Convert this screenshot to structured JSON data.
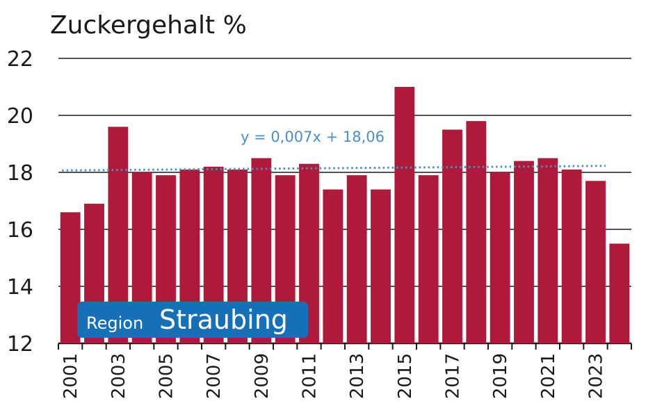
{
  "chart_data": {
    "type": "bar",
    "title": "Zuckergehalt %",
    "xlabel": "",
    "ylabel": "",
    "categories": [
      "2001",
      "2002",
      "2003",
      "2004",
      "2005",
      "2006",
      "2007",
      "2008",
      "2009",
      "2010",
      "2011",
      "2012",
      "2013",
      "2014",
      "2015",
      "2016",
      "2017",
      "2018",
      "2019",
      "2020",
      "2021",
      "2022",
      "2023",
      "2024"
    ],
    "values": [
      16.6,
      16.9,
      19.6,
      18.0,
      17.9,
      18.1,
      18.2,
      18.1,
      18.5,
      17.9,
      18.3,
      17.4,
      17.9,
      17.4,
      21.0,
      17.9,
      19.5,
      19.8,
      18.0,
      18.4,
      18.5,
      18.1,
      17.7,
      15.5
    ],
    "ylim": [
      12,
      22
    ],
    "yticks": [
      "12",
      "14",
      "16",
      "18",
      "20",
      "22"
    ],
    "xtick_labels": [
      "2001",
      "2003",
      "2005",
      "2007",
      "2009",
      "2011",
      "2013",
      "2015",
      "2017",
      "2019",
      "2021",
      "2023"
    ],
    "grid": true,
    "bar_color": "#b01a3a",
    "trendline": {
      "label": "y = 0,007x + 18,06",
      "slope": 0.007,
      "intercept": 18.06,
      "color": "#4a90c8",
      "style": "dotted"
    },
    "badge": {
      "prefix": "Region",
      "name": "Straubing",
      "color": "#1570b8"
    }
  }
}
